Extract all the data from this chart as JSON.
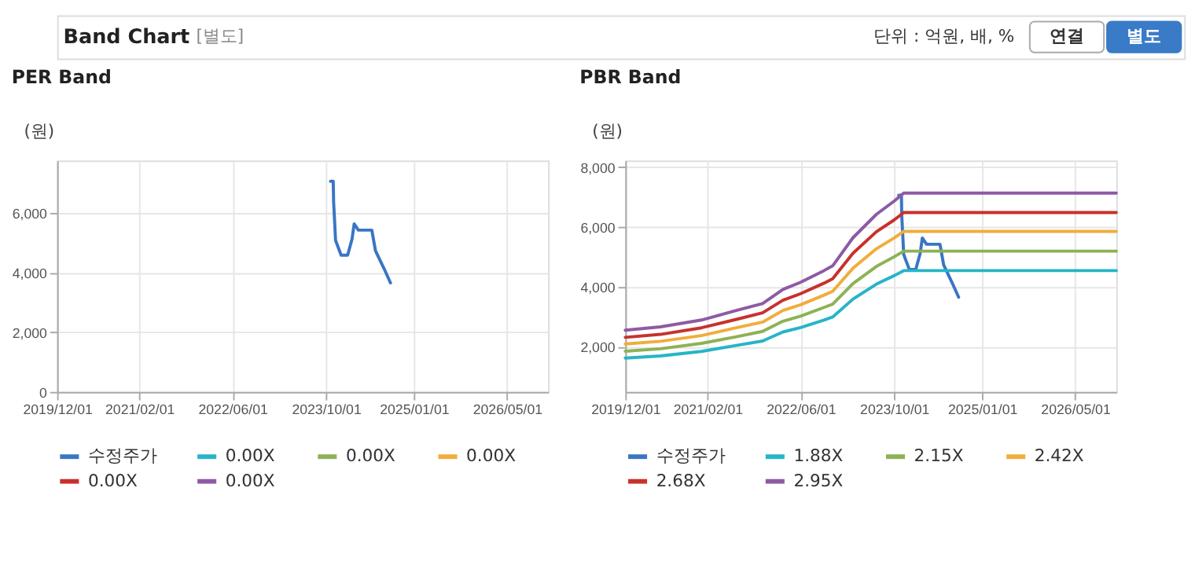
{
  "chart_data": [
    {
      "type": "other",
      "title": "Band Chart",
      "subtitle": "[별도]",
      "annotations": [
        "단위 : 억원, 배, %",
        "연결",
        "별도"
      ]
    },
    {
      "type": "line",
      "title": "PER Band",
      "ylabel": "(원)",
      "grid": true,
      "legend": "bottom",
      "xlim": [
        "2019-12-01",
        "2026-12-01"
      ],
      "xticks": [
        {
          "value": "2019-12-01",
          "label": "2019/12/01"
        },
        {
          "value": "2021-02-01",
          "label": "2021/02/01"
        },
        {
          "value": "2022-06-01",
          "label": "2022/06/01"
        },
        {
          "value": "2023-10-01",
          "label": "2023/10/01"
        },
        {
          "value": "2025-01-01",
          "label": "2025/01/01"
        },
        {
          "value": "2026-05-01",
          "label": "2026/05/01"
        }
      ],
      "ylim": [
        0,
        7770
      ],
      "yticks": [
        0,
        {
          "value": 2000,
          "label": "2,000"
        },
        {
          "value": 4000,
          "label": "4,000"
        },
        {
          "value": 6000,
          "label": "6,000"
        }
      ],
      "x": [
        "2023-10-25",
        "2023-11-08",
        "2023-11-10",
        "2023-11-15",
        "2023-11-20",
        "2023-12-19",
        "2024-01-22",
        "2024-02-14",
        "2024-02-25",
        "2024-03-18",
        "2024-05-27",
        "2024-06-15",
        "2024-07-31",
        "2024-09-01"
      ],
      "series": [
        {
          "name": "수정주가",
          "color": "#3a75c4",
          "values": [
            7070,
            7070,
            6370,
            5750,
            5090,
            4590,
            4590,
            5130,
            5640,
            5430,
            5430,
            4740,
            4120,
            3660
          ]
        },
        {
          "name": "0.00X",
          "color": "#27b4c8",
          "values": [
            null,
            null,
            null,
            null,
            null,
            null,
            null,
            null,
            null,
            null,
            null,
            null,
            null,
            null
          ]
        },
        {
          "name": "0.00X",
          "color": "#8db255",
          "values": [
            null,
            null,
            null,
            null,
            null,
            null,
            null,
            null,
            null,
            null,
            null,
            null,
            null,
            null
          ]
        },
        {
          "name": "0.00X",
          "color": "#f0ad3c",
          "values": [
            null,
            null,
            null,
            null,
            null,
            null,
            null,
            null,
            null,
            null,
            null,
            null,
            null,
            null
          ]
        },
        {
          "name": "0.00X",
          "color": "#c8312c",
          "values": [
            null,
            null,
            null,
            null,
            null,
            null,
            null,
            null,
            null,
            null,
            null,
            null,
            null,
            null
          ]
        },
        {
          "name": "0.00X",
          "color": "#8e5aa4",
          "values": [
            null,
            null,
            null,
            null,
            null,
            null,
            null,
            null,
            null,
            null,
            null,
            null,
            null,
            null
          ]
        }
      ]
    },
    {
      "type": "line",
      "title": "PBR Band",
      "ylabel": "(원)",
      "grid": true,
      "legend": "bottom",
      "xlim": [
        "2019-12-01",
        "2026-12-01"
      ],
      "xticks": [
        {
          "value": "2019-12-01",
          "label": "2019/12/01"
        },
        {
          "value": "2021-02-01",
          "label": "2021/02/01"
        },
        {
          "value": "2022-06-01",
          "label": "2022/06/01"
        },
        {
          "value": "2023-10-01",
          "label": "2023/10/01"
        },
        {
          "value": "2025-01-01",
          "label": "2025/01/01"
        },
        {
          "value": "2026-05-01",
          "label": "2026/05/01"
        }
      ],
      "ylim": [
        500,
        8230
      ],
      "yticks": [
        {
          "value": 2000,
          "label": "2,000"
        },
        {
          "value": 4000,
          "label": "4,000"
        },
        {
          "value": 6000,
          "label": "6,000"
        },
        {
          "value": 8000,
          "label": "8,000"
        }
      ],
      "x": [
        "2019-12-01",
        "2020-06-01",
        "2021-01-01",
        "2021-07-01",
        "2021-11-15",
        "2022-03-01",
        "2022-06-01",
        "2022-10-01",
        "2022-11-15",
        "2023-03-01",
        "2023-07-01",
        "2023-10-01",
        "2023-11-20",
        "2026-12-01"
      ],
      "series": [
        {
          "name": "수정주가",
          "color": "#3a75c4",
          "x": [
            "2023-10-25",
            "2023-11-08",
            "2023-11-10",
            "2023-11-15",
            "2023-11-20",
            "2023-12-19",
            "2024-01-22",
            "2024-02-14",
            "2024-02-25",
            "2024-03-18",
            "2024-05-27",
            "2024-06-15",
            "2024-07-31",
            "2024-09-01"
          ],
          "values": [
            7070,
            7070,
            6370,
            5750,
            5090,
            4590,
            4590,
            5130,
            5640,
            5430,
            5430,
            4740,
            4120,
            3660
          ]
        },
        {
          "name": "1.88X",
          "color": "#27b4c8",
          "values": [
            1630,
            1700,
            1850,
            2050,
            2200,
            2500,
            2650,
            2900,
            3000,
            3600,
            4100,
            4380,
            4550,
            4550
          ]
        },
        {
          "name": "2.15X",
          "color": "#8db255",
          "values": [
            1860,
            1940,
            2120,
            2340,
            2520,
            2860,
            3030,
            3320,
            3430,
            4120,
            4690,
            5010,
            5200,
            5200
          ]
        },
        {
          "name": "2.42X",
          "color": "#f0ad3c",
          "values": [
            2100,
            2190,
            2380,
            2640,
            2830,
            3220,
            3410,
            3730,
            3860,
            4630,
            5280,
            5640,
            5860,
            5860
          ]
        },
        {
          "name": "2.68X",
          "color": "#c8312c",
          "values": [
            2320,
            2420,
            2640,
            2920,
            3140,
            3560,
            3780,
            4130,
            4280,
            5130,
            5850,
            6240,
            6490,
            6490
          ]
        },
        {
          "name": "2.95X",
          "color": "#8e5aa4",
          "values": [
            2560,
            2670,
            2900,
            3220,
            3450,
            3920,
            4160,
            4550,
            4710,
            5650,
            6430,
            6870,
            7140,
            7140
          ]
        }
      ]
    }
  ]
}
